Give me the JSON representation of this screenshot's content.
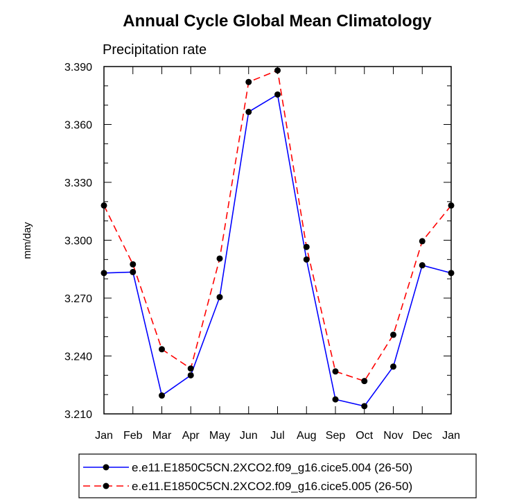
{
  "chart_data": {
    "type": "line",
    "title": "Annual Cycle Global Mean Climatology",
    "subtitle": "Precipitation rate",
    "xlabel": "",
    "ylabel": "mm/day",
    "categories": [
      "Jan",
      "Feb",
      "Mar",
      "Apr",
      "May",
      "Jun",
      "Jul",
      "Aug",
      "Sep",
      "Oct",
      "Nov",
      "Dec",
      "Jan"
    ],
    "ylim": [
      3.21,
      3.39
    ],
    "yticks": [
      "3.210",
      "3.240",
      "3.270",
      "3.300",
      "3.330",
      "3.360",
      "3.390"
    ],
    "grid": false,
    "legend_position": "bottom",
    "series": [
      {
        "name": "e.e11.E1850C5CN.2XCO2.f09_g16.cice5.004 (26-50)",
        "color": "#0000ff",
        "line_style": "solid",
        "marker": "filled-circle",
        "values": [
          3.283,
          3.2835,
          3.2195,
          3.23,
          3.2705,
          3.3665,
          3.3755,
          3.29,
          3.2175,
          3.214,
          3.2345,
          3.287,
          3.283
        ]
      },
      {
        "name": "e.e11.E1850C5CN.2XCO2.f09_g16.cice5.005 (26-50)",
        "color": "#ff0000",
        "line_style": "dashed",
        "marker": "filled-circle",
        "values": [
          3.318,
          3.2875,
          3.2435,
          3.2335,
          3.2905,
          3.382,
          3.388,
          3.2965,
          3.232,
          3.227,
          3.251,
          3.2995,
          3.318
        ]
      }
    ]
  }
}
